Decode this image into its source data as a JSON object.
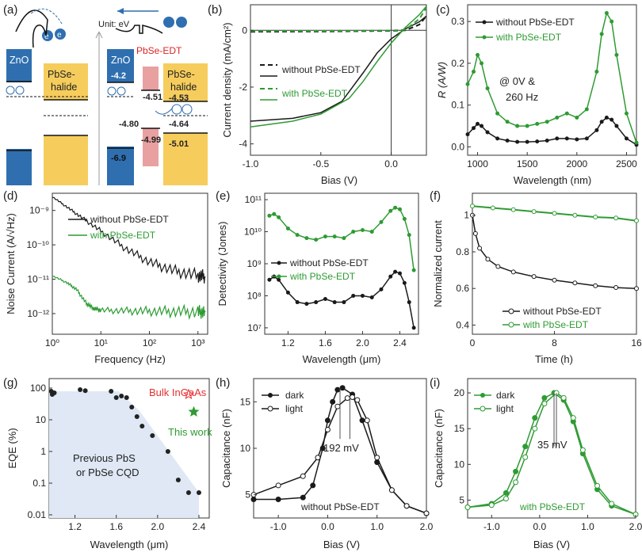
{
  "colors": {
    "black": "#1a1a1a",
    "green": "#2e9b33",
    "znO": "#2f6fb0",
    "pbse": "#f6cd5c",
    "edt": "#e8a0a0",
    "fill": "#dfe8f4",
    "red": "#e53030"
  },
  "panels": {
    "a": {
      "label": "(a)",
      "unit": "Unit: eV",
      "zno": "ZnO",
      "zno2": "ZnO",
      "pbse_halide": "PbSe-\nhalide",
      "pbse_halide2": "PbSe-\nhalide",
      "pbse_edt": "PbSe-EDT",
      "levels": {
        "zno_cb": "-4.2",
        "zno_vb": "-6.9",
        "edt_cb": "-4.51",
        "edt_vb": "-4.99",
        "pbse_cb": "-4.53",
        "pbse_vb": "-5.01",
        "pbse_f": "-4.64",
        "edt_f": "-4.80"
      }
    },
    "b": {
      "label": "(b)",
      "xlabel": "Bias (V)",
      "ylabel": "Current density (mA/cm²)",
      "xticks": [
        "-1.0",
        "-0.5",
        "0.0"
      ],
      "yticks": [
        "0",
        "-2",
        "-4"
      ],
      "legend": [
        "without PbSe-EDT",
        "with PbSe-EDT"
      ]
    },
    "c": {
      "label": "(c)",
      "xlabel": "Wavelength (nm)",
      "ylabel": "R (A/W)",
      "xticks": [
        "1000",
        "1500",
        "2000",
        "2500"
      ],
      "yticks": [
        "0.0",
        "0.1",
        "0.2",
        "0.3"
      ],
      "legend": [
        "without PbSe-EDT",
        "with PbSe-EDT"
      ],
      "annotation1": "@ 0V &",
      "annotation2": "260 Hz"
    },
    "d": {
      "label": "(d)",
      "xlabel": "Frequency (Hz)",
      "ylabel": "Noise Current (A/√Hz)",
      "xticks": [
        "10⁰",
        "10¹",
        "10²",
        "10³"
      ],
      "yticks": [
        "10⁻⁹",
        "10⁻¹⁰",
        "10⁻¹¹",
        "10⁻¹²"
      ],
      "legend": [
        "without PbSe-EDT",
        "with PbSe-EDT"
      ]
    },
    "e": {
      "label": "(e)",
      "xlabel": "Wavelength (μm)",
      "ylabel": "Detectivity (Jones)",
      "xticks": [
        "1.2",
        "1.6",
        "2.0",
        "2.4"
      ],
      "yticks": [
        "10¹¹",
        "10¹⁰",
        "10⁹",
        "10⁸",
        "10⁷"
      ],
      "legend": [
        "without PbSe-EDT",
        "with PbSe-EDT"
      ]
    },
    "f": {
      "label": "(f)",
      "xlabel": "Time (h)",
      "ylabel": "Normalized current",
      "xticks": [
        "0",
        "8",
        "16"
      ],
      "yticks": [
        "1",
        "0.8",
        "0.6",
        "0.4"
      ],
      "legend": [
        "without PbSe-EDT",
        "with PbSe-EDT"
      ]
    },
    "g": {
      "label": "(g)",
      "xlabel": "Wavelength (μm)",
      "ylabel": "EQE (%)",
      "xticks": [
        "1.2",
        "1.6",
        "2.0",
        "2.4"
      ],
      "yticks": [
        "100",
        "10",
        "1",
        "0.1",
        "0.01"
      ],
      "bulk": "Bulk InGaAs",
      "thiswork": "This work",
      "prev1": "Previous PbS",
      "prev2": "or PbSe CQD"
    },
    "h": {
      "label": "(h)",
      "xlabel": "Bias (V)",
      "ylabel": "Capacitance (nF)",
      "xticks": [
        "-1.0",
        "0.0",
        "1.0",
        "2.0"
      ],
      "yticks": [
        "15",
        "10",
        "5"
      ],
      "legend": [
        "dark",
        "light"
      ],
      "shift": "192 mV",
      "note": "without PbSe-EDT"
    },
    "i": {
      "label": "(i)",
      "xlabel": "Bias (V)",
      "ylabel": "Capacitance (nF)",
      "xticks": [
        "-1.0",
        "0.0",
        "1.0",
        "2.0"
      ],
      "yticks": [
        "20",
        "15",
        "10",
        "5"
      ],
      "legend": [
        "dark",
        "light"
      ],
      "shift": "35 mV",
      "note": "with PbSe-EDT"
    }
  },
  "chart_data": [
    {
      "panel": "b",
      "type": "line",
      "title": "",
      "xlabel": "Bias (V)",
      "ylabel": "Current density (mA/cm²)",
      "xlim": [
        -1.0,
        0.25
      ],
      "ylim": [
        -4.4,
        0.9
      ],
      "series": [
        {
          "name": "without PbSe-EDT (dark)",
          "style": "dashed-black",
          "x": [
            -1.0,
            -0.5,
            0.0,
            0.1,
            0.2,
            0.25
          ],
          "y": [
            -0.05,
            -0.04,
            -0.02,
            0.0,
            0.2,
            0.5
          ]
        },
        {
          "name": "without PbSe-EDT (light)",
          "style": "solid-black",
          "x": [
            -1.0,
            -0.7,
            -0.5,
            -0.35,
            -0.2,
            -0.1,
            0.0,
            0.1,
            0.2,
            0.25
          ],
          "y": [
            -3.2,
            -3.1,
            -2.9,
            -2.5,
            -1.5,
            -0.8,
            -0.3,
            0.05,
            0.3,
            0.5
          ]
        },
        {
          "name": "with PbSe-EDT (dark)",
          "style": "dashed-green",
          "x": [
            -1.0,
            -0.5,
            0.0,
            0.1,
            0.2,
            0.25
          ],
          "y": [
            -0.03,
            -0.02,
            -0.01,
            0.02,
            0.4,
            0.8
          ]
        },
        {
          "name": "with PbSe-EDT (light)",
          "style": "solid-green",
          "x": [
            -1.0,
            -0.7,
            -0.5,
            -0.3,
            -0.2,
            -0.1,
            0.0,
            0.1,
            0.2,
            0.25
          ],
          "y": [
            -3.4,
            -3.2,
            -2.95,
            -2.4,
            -1.8,
            -1.1,
            -0.45,
            0.1,
            0.55,
            0.85
          ]
        }
      ]
    },
    {
      "panel": "c",
      "type": "line",
      "xlabel": "Wavelength (nm)",
      "ylabel": "R (A/W)",
      "xlim": [
        900,
        2600
      ],
      "ylim": [
        -0.02,
        0.34
      ],
      "series": [
        {
          "name": "without PbSe-EDT",
          "x": [
            900,
            960,
            1000,
            1040,
            1100,
            1200,
            1300,
            1400,
            1500,
            1600,
            1700,
            1800,
            1900,
            2000,
            2100,
            2200,
            2250,
            2300,
            2350,
            2400,
            2500,
            2600
          ],
          "y": [
            0.03,
            0.045,
            0.055,
            0.05,
            0.035,
            0.02,
            0.015,
            0.012,
            0.012,
            0.013,
            0.015,
            0.02,
            0.02,
            0.018,
            0.02,
            0.04,
            0.06,
            0.07,
            0.065,
            0.05,
            0.02,
            0.005
          ]
        },
        {
          "name": "with PbSe-EDT",
          "x": [
            900,
            960,
            1000,
            1040,
            1100,
            1200,
            1300,
            1400,
            1500,
            1600,
            1700,
            1800,
            1900,
            2000,
            2100,
            2200,
            2250,
            2300,
            2350,
            2400,
            2500,
            2600
          ],
          "y": [
            0.15,
            0.18,
            0.22,
            0.2,
            0.14,
            0.08,
            0.06,
            0.05,
            0.05,
            0.055,
            0.06,
            0.07,
            0.08,
            0.07,
            0.09,
            0.18,
            0.27,
            0.32,
            0.3,
            0.22,
            0.08,
            0.01
          ]
        }
      ]
    },
    {
      "panel": "d",
      "type": "line",
      "xlabel": "Frequency (Hz)",
      "ylabel": "Noise Current",
      "xlim_log": [
        0,
        3.2
      ],
      "ylim_log": [
        -12.6,
        -8.5
      ],
      "series": [
        {
          "name": "without PbSe-EDT",
          "logx": [
            0,
            0.3,
            0.6,
            1.0,
            1.5,
            2.0,
            2.5,
            3.0,
            3.15
          ],
          "logy": [
            -8.6,
            -8.9,
            -9.2,
            -9.6,
            -10.1,
            -10.5,
            -10.75,
            -10.9,
            -10.92
          ]
        },
        {
          "name": "with PbSe-EDT",
          "logx": [
            0,
            0.3,
            0.5,
            0.7,
            0.85,
            1.0,
            1.5,
            2.0,
            2.5,
            3.0,
            3.15
          ],
          "logy": [
            -10.9,
            -11.1,
            -11.3,
            -11.7,
            -11.85,
            -11.9,
            -11.92,
            -11.93,
            -11.94,
            -11.95,
            -11.95
          ]
        }
      ]
    },
    {
      "panel": "e",
      "type": "line",
      "xlabel": "Wavelength (μm)",
      "ylabel": "Detectivity (Jones)",
      "xlim": [
        0.95,
        2.6
      ],
      "ylim_log": [
        6.8,
        11.2
      ],
      "series": [
        {
          "name": "without PbSe-EDT",
          "x": [
            1.0,
            1.05,
            1.1,
            1.2,
            1.3,
            1.4,
            1.5,
            1.6,
            1.7,
            1.8,
            1.9,
            2.0,
            2.1,
            2.2,
            2.3,
            2.35,
            2.4,
            2.45,
            2.5,
            2.55
          ],
          "logy": [
            8.5,
            8.6,
            8.5,
            8.1,
            7.8,
            7.75,
            7.8,
            7.9,
            7.8,
            7.8,
            8.0,
            8.0,
            7.95,
            8.2,
            8.6,
            8.75,
            8.7,
            8.4,
            7.8,
            7.0
          ]
        },
        {
          "name": "with PbSe-EDT",
          "x": [
            1.0,
            1.05,
            1.1,
            1.2,
            1.3,
            1.4,
            1.5,
            1.6,
            1.7,
            1.8,
            1.9,
            2.0,
            2.1,
            2.2,
            2.3,
            2.35,
            2.4,
            2.45,
            2.5,
            2.55
          ],
          "logy": [
            10.5,
            10.55,
            10.45,
            10.1,
            9.9,
            9.8,
            9.75,
            9.85,
            9.85,
            9.8,
            10.0,
            10.05,
            10.0,
            10.3,
            10.65,
            10.75,
            10.7,
            10.4,
            9.9,
            8.8
          ]
        }
      ]
    },
    {
      "panel": "f",
      "type": "line",
      "xlabel": "Time (h)",
      "ylabel": "Normalized current",
      "xlim": [
        0,
        16
      ],
      "ylim": [
        0.35,
        1.12
      ],
      "series": [
        {
          "name": "without PbSe-EDT",
          "x": [
            0,
            0.3,
            0.7,
            1.5,
            2.5,
            4,
            6,
            8,
            10,
            12,
            14,
            16
          ],
          "y": [
            1.0,
            0.9,
            0.82,
            0.76,
            0.72,
            0.69,
            0.665,
            0.645,
            0.63,
            0.615,
            0.605,
            0.6
          ]
        },
        {
          "name": "with PbSe-EDT",
          "x": [
            0,
            2,
            4,
            6,
            8,
            10,
            12,
            14,
            16
          ],
          "y": [
            1.05,
            1.04,
            1.03,
            1.02,
            1.01,
            1.0,
            0.99,
            0.985,
            0.97
          ]
        }
      ]
    },
    {
      "panel": "g",
      "type": "scatter",
      "xlabel": "Wavelength (μm)",
      "ylabel": "EQE (%)",
      "xlim": [
        0.95,
        2.5
      ],
      "ylim_log": [
        -2.1,
        2.3
      ],
      "series": [
        {
          "name": "Previous PbS or PbSe CQD",
          "x": [
            0.97,
            0.98,
            1.0,
            1.25,
            1.3,
            1.55,
            1.6,
            1.65,
            1.7,
            1.75,
            1.8,
            1.85,
            1.95,
            2.1,
            2.2,
            2.3,
            2.4
          ],
          "logy": [
            1.9,
            1.8,
            1.85,
            1.95,
            1.92,
            1.9,
            1.7,
            1.75,
            1.7,
            1.4,
            1.1,
            0.8,
            0.5,
            0.0,
            -0.9,
            -1.3,
            -1.3
          ]
        },
        {
          "name": "Bulk InGaAs",
          "x": [
            2.3
          ],
          "logy": [
            1.8
          ]
        },
        {
          "name": "This work",
          "x": [
            2.35
          ],
          "logy": [
            1.25
          ]
        }
      ]
    },
    {
      "panel": "h",
      "type": "line",
      "xlabel": "Bias (V)",
      "ylabel": "Capacitance (nF)",
      "xlim": [
        -1.5,
        2.0
      ],
      "ylim": [
        2.5,
        17.5
      ],
      "series": [
        {
          "name": "dark",
          "x": [
            -1.5,
            -1.0,
            -0.5,
            -0.3,
            -0.1,
            0.0,
            0.1,
            0.2,
            0.3,
            0.5,
            0.7,
            1.0,
            1.3,
            1.6,
            2.0
          ],
          "y": [
            4.5,
            4.5,
            4.7,
            6.0,
            10.0,
            13.0,
            15.0,
            16.3,
            16.5,
            15.8,
            13.0,
            8.5,
            5.5,
            3.8,
            3.0
          ]
        },
        {
          "name": "light",
          "x": [
            -1.5,
            -1.0,
            -0.5,
            -0.2,
            0.0,
            0.2,
            0.4,
            0.5,
            0.6,
            0.8,
            1.0,
            1.3,
            1.6,
            2.0
          ],
          "y": [
            5.0,
            6.0,
            7.0,
            9.0,
            12.0,
            14.5,
            15.4,
            15.5,
            15.2,
            13.0,
            9.0,
            5.5,
            3.8,
            3.0
          ]
        }
      ]
    },
    {
      "panel": "i",
      "type": "line",
      "xlabel": "Bias (V)",
      "ylabel": "Capacitance (nF)",
      "xlim": [
        -1.5,
        2.0
      ],
      "ylim": [
        2.5,
        22.0
      ],
      "series": [
        {
          "name": "dark",
          "x": [
            -1.5,
            -1.0,
            -0.7,
            -0.5,
            -0.3,
            -0.1,
            0.1,
            0.3,
            0.5,
            0.7,
            0.9,
            1.2,
            1.5,
            2.0
          ],
          "y": [
            4.0,
            4.5,
            6.0,
            9.0,
            12.5,
            16.5,
            19.3,
            20.0,
            19.0,
            16.0,
            11.5,
            6.5,
            4.2,
            3.0
          ]
        },
        {
          "name": "light",
          "x": [
            -1.5,
            -1.0,
            -0.7,
            -0.5,
            -0.3,
            -0.1,
            0.1,
            0.35,
            0.5,
            0.7,
            0.9,
            1.2,
            1.5,
            2.0
          ],
          "y": [
            4.0,
            4.3,
            5.2,
            7.5,
            11.0,
            15.0,
            18.5,
            20.0,
            19.3,
            16.5,
            12.0,
            7.0,
            4.5,
            3.0
          ]
        }
      ]
    }
  ]
}
